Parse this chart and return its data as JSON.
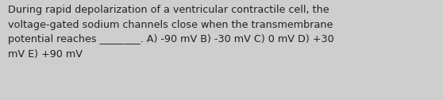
{
  "text": "During rapid depolarization of a ventricular contractile cell, the\nvoltage-gated sodium channels close when the transmembrane\npotential reaches ________. A) -90 mV B) -30 mV C) 0 mV D) +30\nmV E) +90 mV",
  "background_color": "#cecece",
  "text_color": "#222222",
  "font_size": 9.2,
  "font_weight": "normal",
  "fig_width": 5.58,
  "fig_height": 1.26,
  "dpi": 100,
  "linespacing": 1.55
}
